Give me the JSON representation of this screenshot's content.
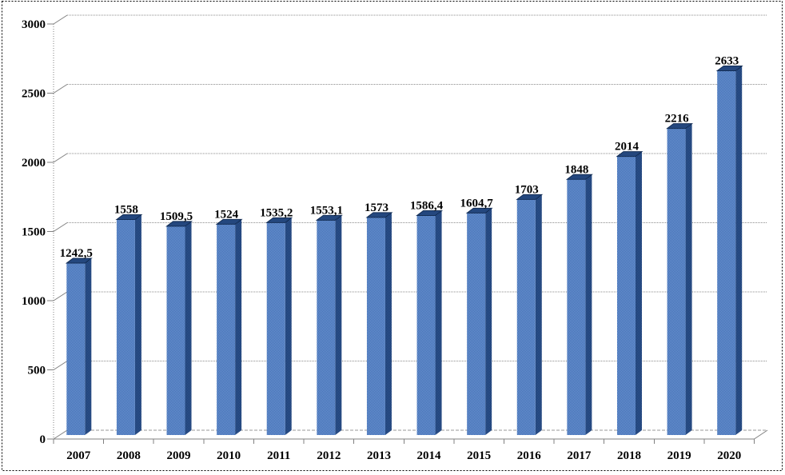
{
  "chart_data": {
    "type": "bar",
    "variant": "3d-column",
    "title": "",
    "xlabel": "",
    "ylabel": "",
    "legend": "none",
    "grid": "horizontal",
    "categories": [
      "2007",
      "2008",
      "2009",
      "2010",
      "2011",
      "2012",
      "2013",
      "2014",
      "2015",
      "2016",
      "2017",
      "2018",
      "2019",
      "2020"
    ],
    "values": [
      1242.5,
      1558,
      1509.5,
      1524,
      1535.2,
      1553.1,
      1573,
      1586.4,
      1604.7,
      1703,
      1848,
      2014,
      2216,
      2633
    ],
    "value_labels": [
      "1242,5",
      "1558",
      "1509,5",
      "1524",
      "1535,2",
      "1553,1",
      "1573",
      "1586,4",
      "1604,7",
      "1703",
      "1848",
      "2014",
      "2216",
      "2633"
    ],
    "ylim": [
      0,
      3000
    ],
    "ytick_step": 500,
    "ytick_labels": [
      "0",
      "500",
      "1000",
      "1500",
      "2000",
      "2500",
      "3000"
    ],
    "colors": {
      "bar_front_light": "#7498d5",
      "bar_front_dark": "#3a6bb0",
      "bar_side_light": "#2f5796",
      "bar_side_dark": "#1d3c6d",
      "bar_top": "#24477e",
      "bar_top_edge": "#132d54",
      "gridline": "#8c8c8c",
      "axis": "#808080",
      "floor_back": "#999999",
      "label_text": "#000000",
      "background": "#ffffff",
      "frame": "#000000"
    }
  }
}
